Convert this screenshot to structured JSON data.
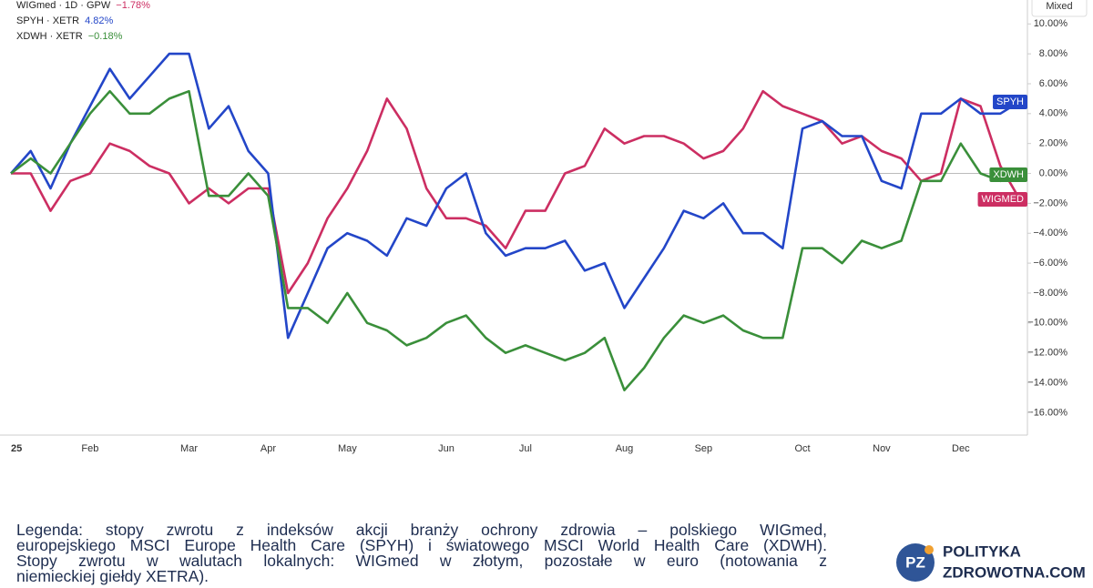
{
  "chart_data": {
    "type": "line",
    "categories": [
      "25",
      null,
      null,
      null,
      "Feb",
      null,
      null,
      null,
      null,
      "Mar",
      null,
      null,
      null,
      "Apr",
      null,
      null,
      null,
      "May",
      null,
      null,
      null,
      null,
      "Jun",
      null,
      null,
      null,
      "Jul",
      null,
      null,
      null,
      null,
      "Aug",
      null,
      null,
      null,
      "Sep",
      null,
      null,
      null,
      null,
      "Oct",
      null,
      null,
      null,
      "Nov",
      null,
      null,
      null,
      "Dec",
      null,
      null,
      null
    ],
    "series": [
      {
        "name": "WIGmed · 1D · GPW",
        "change": "−1.78%",
        "tag": "WIGMED",
        "color": "#cc2e62",
        "values": [
          0,
          0,
          -2.5,
          -0.5,
          0,
          2,
          1.5,
          0.5,
          0,
          -2,
          -1,
          -2,
          -1,
          -1,
          -8,
          -6,
          -3,
          -1,
          1.5,
          5,
          3,
          -1,
          -3,
          -3,
          -3.5,
          -5,
          -2.5,
          -2.5,
          0,
          0.5,
          3,
          2,
          2.5,
          2.5,
          2,
          1,
          1.5,
          3,
          5.5,
          4.5,
          4,
          3.5,
          2,
          2.5,
          1.5,
          1,
          -0.5,
          0,
          5,
          4.5,
          0.5,
          -1.78
        ]
      },
      {
        "name": "SPYH · XETR",
        "change": "4.82%",
        "tag": "SPYH",
        "color": "#2346c8",
        "values": [
          0,
          1.5,
          -1,
          2,
          4.5,
          7,
          5,
          6.5,
          8,
          8,
          3,
          4.5,
          1.5,
          0,
          -11,
          -8,
          -5,
          -4,
          -4.5,
          -5.5,
          -3,
          -3.5,
          -1,
          0,
          -4,
          -5.5,
          -5,
          -5,
          -4.5,
          -6.5,
          -6,
          -9,
          -7,
          -5,
          -2.5,
          -3,
          -2,
          -4,
          -4,
          -5,
          3,
          3.5,
          2.5,
          2.5,
          -0.5,
          -1,
          4,
          4,
          5,
          4,
          4,
          4.82
        ]
      },
      {
        "name": "XDWH · XETR",
        "change": "−0.18%",
        "tag": "XDWH",
        "color": "#3a8f3a",
        "values": [
          0,
          1,
          0,
          2,
          4,
          5.5,
          4,
          4,
          5,
          5.5,
          -1.5,
          -1.5,
          0,
          -1.5,
          -9,
          -9,
          -10,
          -8,
          -10,
          -10.5,
          -11.5,
          -11,
          -10,
          -9.5,
          -11,
          -12,
          -11.5,
          -12,
          -12.5,
          -12,
          -11,
          -14.5,
          -13,
          -11,
          -9.5,
          -10,
          -9.5,
          -10.5,
          -11,
          -11,
          -5,
          -5,
          -6,
          -4.5,
          -5,
          -4.5,
          -0.5,
          -0.5,
          2,
          0,
          -0.5,
          -0.18
        ]
      }
    ],
    "ylim": [
      -17.5,
      11.6
    ],
    "yticks": [
      {
        "value": 10,
        "label": "10.00%"
      },
      {
        "value": 8,
        "label": "8.00%"
      },
      {
        "value": 6,
        "label": "6.00%"
      },
      {
        "value": 4,
        "label": "4.00%"
      },
      {
        "value": 2,
        "label": "2.00%"
      },
      {
        "value": 0,
        "label": "0.00%"
      },
      {
        "value": -2,
        "label": "−2.00%"
      },
      {
        "value": -4,
        "label": "−4.00%"
      },
      {
        "value": -6,
        "label": "−6.00%"
      },
      {
        "value": -8,
        "label": "−8.00%"
      },
      {
        "value": -10,
        "label": "−10.00%"
      },
      {
        "value": -12,
        "label": "−12.00%"
      },
      {
        "value": -14,
        "label": "−14.00%"
      },
      {
        "value": -16,
        "label": "−16.00%"
      }
    ],
    "scale_button": "Mixed"
  },
  "caption": [
    "Legenda: stopy zwrotu z indeksów akcji branży ochrony zdrowia – polskiego WIGmed,",
    "europejskiego MSCI Europe Health Care (SPYH) i światowego MSCI World Health Care (XDWH).",
    "Stopy zwrotu w walutach lokalnych: WIGmed w złotym, pozostałe w euro (notowania z",
    "niemieckiej giełdy XETRA)."
  ],
  "logo": {
    "mark": "PZ",
    "line1": "POLITYKA",
    "line2": "ZDROWOTNA.COM"
  }
}
